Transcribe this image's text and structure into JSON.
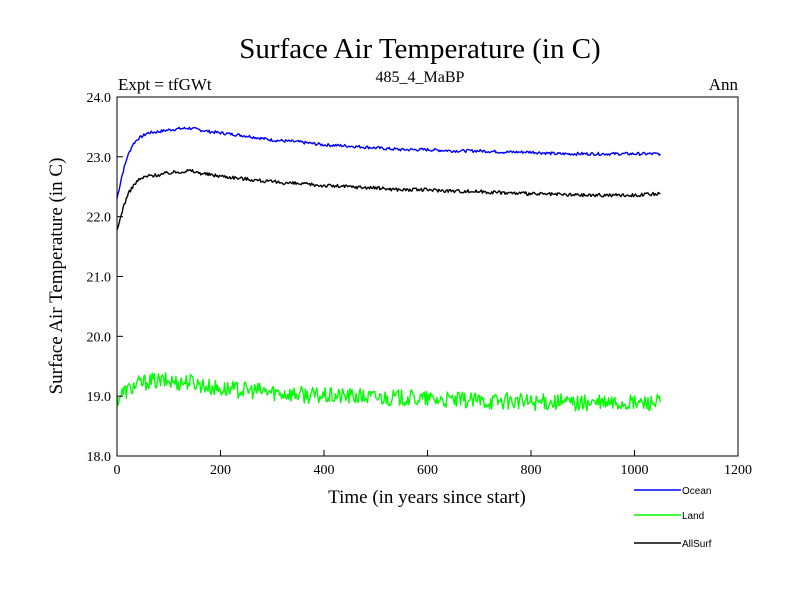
{
  "chart_data": {
    "type": "line",
    "title": "Surface Air Temperature (in C)",
    "subtitle": "485_4_MaBP",
    "annotation_left": "Expt = tfGWt",
    "annotation_right": "Ann",
    "xlabel": "Time (in years since start)",
    "ylabel": "Surface Air Temperature (in C)",
    "xlim": [
      0,
      1200
    ],
    "ylim": [
      18.0,
      24.0
    ],
    "xticks": [
      0,
      200,
      400,
      600,
      800,
      1000,
      1200
    ],
    "xtick_labels": [
      "0",
      "200",
      "400",
      "600",
      "800",
      "1000",
      "1200"
    ],
    "yticks": [
      18.0,
      19.0,
      20.0,
      21.0,
      22.0,
      23.0,
      24.0
    ],
    "ytick_labels": [
      "18.0",
      "19.0",
      "20.0",
      "21.0",
      "22.0",
      "23.0",
      "24.0"
    ],
    "grid": false,
    "legend_position": "bottom-right outside",
    "series": [
      {
        "name": "Ocean",
        "color": "#0000ff",
        "x": [
          0,
          10,
          20,
          30,
          40,
          50,
          60,
          80,
          100,
          120,
          140,
          160,
          180,
          200,
          250,
          300,
          350,
          400,
          450,
          500,
          550,
          600,
          650,
          700,
          750,
          800,
          850,
          900,
          950,
          1000,
          1050
        ],
        "values": [
          22.3,
          22.7,
          23.0,
          23.2,
          23.3,
          23.35,
          23.4,
          23.42,
          23.45,
          23.47,
          23.48,
          23.45,
          23.42,
          23.4,
          23.35,
          23.28,
          23.25,
          23.2,
          23.18,
          23.15,
          23.12,
          23.12,
          23.1,
          23.1,
          23.08,
          23.08,
          23.05,
          23.05,
          23.05,
          23.05,
          23.05
        ]
      },
      {
        "name": "Land",
        "color": "#00ff00",
        "x": [
          0,
          10,
          20,
          30,
          40,
          50,
          60,
          80,
          100,
          120,
          140,
          160,
          180,
          200,
          250,
          300,
          350,
          400,
          450,
          500,
          550,
          600,
          650,
          700,
          750,
          800,
          850,
          900,
          950,
          1000,
          1050
        ],
        "values": [
          18.95,
          19.05,
          19.1,
          19.15,
          19.2,
          19.22,
          19.25,
          19.25,
          19.25,
          19.23,
          19.25,
          19.2,
          19.15,
          19.12,
          19.1,
          19.07,
          19.03,
          19.0,
          19.0,
          18.98,
          18.97,
          18.95,
          18.93,
          18.92,
          18.92,
          18.9,
          18.9,
          18.88,
          18.88,
          18.88,
          18.9
        ]
      },
      {
        "name": "AllSurf",
        "color": "#000000",
        "x": [
          0,
          10,
          20,
          30,
          40,
          50,
          60,
          80,
          100,
          120,
          140,
          160,
          180,
          200,
          250,
          300,
          350,
          400,
          450,
          500,
          550,
          600,
          650,
          700,
          750,
          800,
          850,
          900,
          950,
          1000,
          1050
        ],
        "values": [
          21.75,
          22.1,
          22.35,
          22.5,
          22.6,
          22.65,
          22.68,
          22.7,
          22.73,
          22.75,
          22.77,
          22.73,
          22.7,
          22.68,
          22.63,
          22.58,
          22.55,
          22.52,
          22.5,
          22.48,
          22.45,
          22.45,
          22.43,
          22.42,
          22.4,
          22.38,
          22.37,
          22.36,
          22.36,
          22.36,
          22.38
        ]
      }
    ]
  }
}
